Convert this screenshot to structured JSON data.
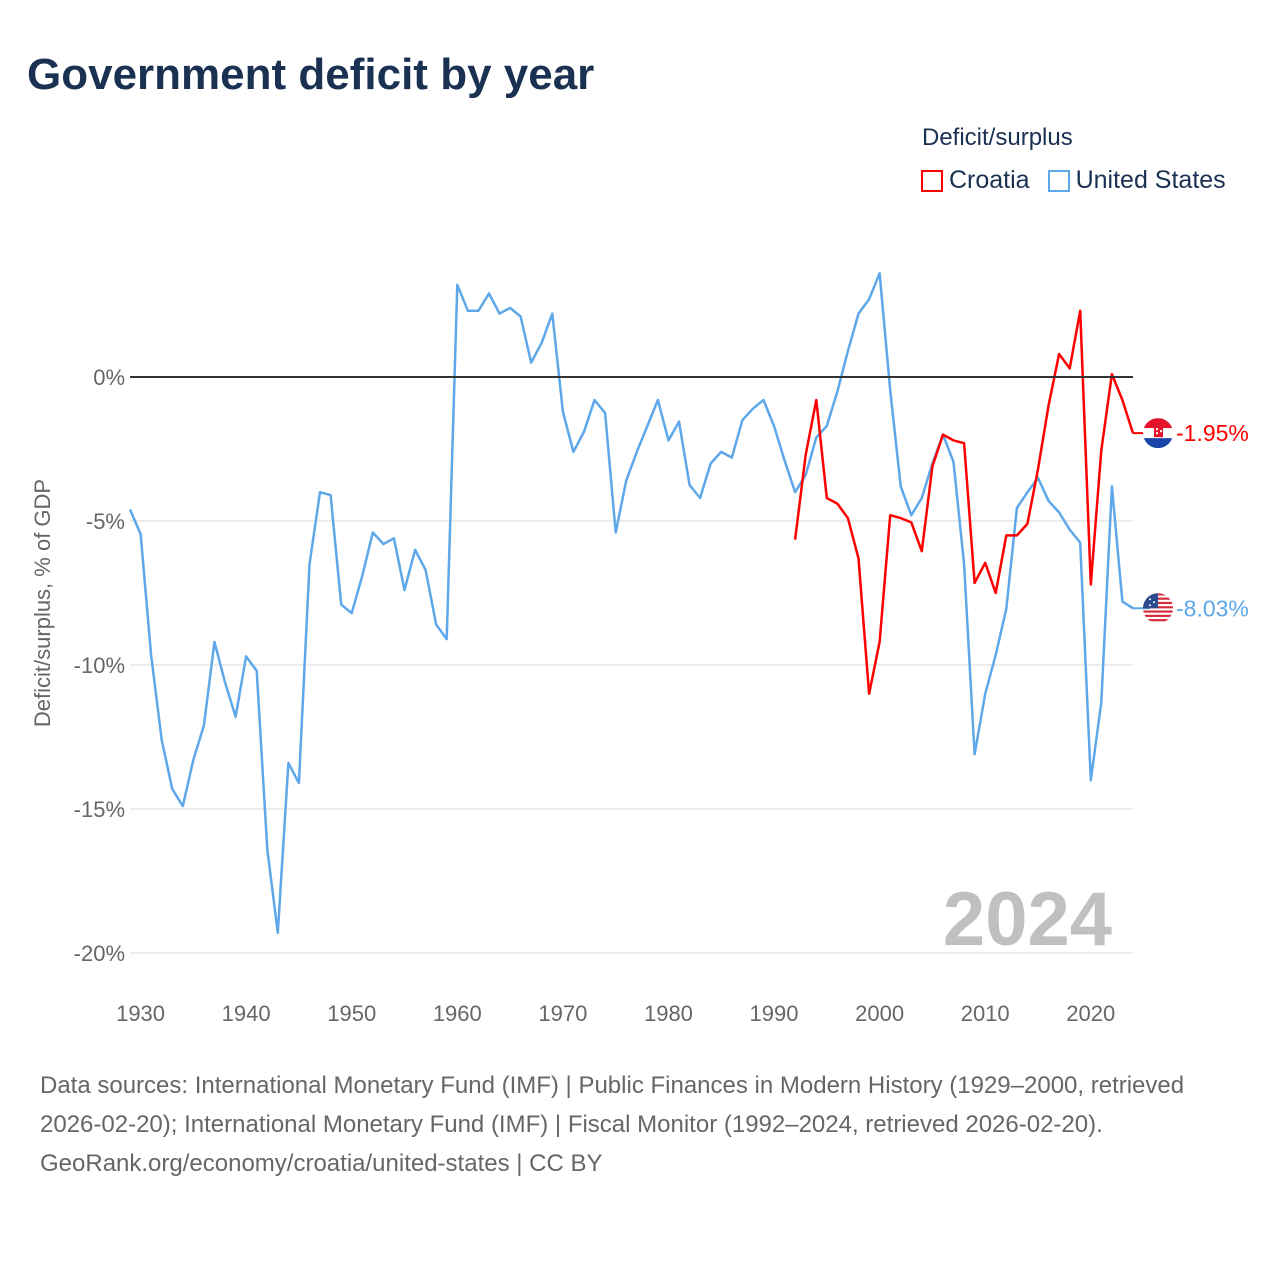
{
  "title": "Government deficit by year",
  "legend": {
    "title": "Deficit/surplus",
    "items": [
      {
        "label": "Croatia",
        "color": "#ff0000"
      },
      {
        "label": "United States",
        "color": "#5ea8ea"
      }
    ]
  },
  "chart_data": {
    "type": "line",
    "title": "Government deficit by year",
    "xlabel": "",
    "ylabel": "Deficit/surplus, % of GDP",
    "xlim": [
      1929,
      2024
    ],
    "ylim": [
      -20,
      3.6
    ],
    "x_ticks": [
      1930,
      1940,
      1950,
      1960,
      1970,
      1980,
      1990,
      2000,
      2010,
      2020
    ],
    "y_ticks": [
      {
        "value": 0,
        "label": "0%"
      },
      {
        "value": -5,
        "label": "-5%"
      },
      {
        "value": -10,
        "label": "-10%"
      },
      {
        "value": -15,
        "label": "-15%"
      },
      {
        "value": -20,
        "label": "-20%"
      }
    ],
    "grid": true,
    "year_watermark": "2024",
    "series": [
      {
        "name": "United States",
        "color": "#5ea8ea",
        "end_label": "-8.03%",
        "flag": "us-flag",
        "start_year": 1929,
        "values": [
          -4.6,
          -5.45,
          -9.65,
          -12.6,
          -14.3,
          -14.9,
          -13.3,
          -12.1,
          -9.2,
          -10.6,
          -11.8,
          -9.7,
          -10.2,
          -16.4,
          -19.3,
          -13.4,
          -14.1,
          -6.5,
          -4.0,
          -4.1,
          -7.9,
          -8.2,
          -6.9,
          -5.4,
          -5.8,
          -5.6,
          -7.4,
          -6.0,
          -6.7,
          -8.6,
          -9.1,
          3.2,
          2.3,
          2.3,
          2.9,
          2.2,
          2.4,
          2.1,
          0.5,
          1.2,
          2.2,
          -1.2,
          -2.6,
          -1.9,
          -0.8,
          -1.25,
          -5.4,
          -3.6,
          -2.6,
          -1.7,
          -0.8,
          -2.2,
          -1.55,
          -3.75,
          -4.2,
          -3.0,
          -2.6,
          -2.8,
          -1.5,
          -1.1,
          -0.8,
          -1.7,
          -2.9,
          -4.0,
          -3.4,
          -2.1,
          -1.7,
          -0.5,
          0.9,
          2.2,
          2.7,
          3.6,
          -0.45,
          -3.8,
          -4.8,
          -4.2,
          -3.0,
          -2.0,
          -2.95,
          -6.5,
          -13.1,
          -11.0,
          -9.65,
          -8.05,
          -4.55,
          -4.0,
          -3.5,
          -4.3,
          -4.7,
          -5.3,
          -5.75,
          -14.0,
          -11.3,
          -3.8,
          -7.8,
          -8.03
        ]
      },
      {
        "name": "Croatia",
        "color": "#ff0000",
        "end_label": "-1.95%",
        "flag": "croatia-flag",
        "start_year": 1992,
        "values": [
          -5.65,
          -2.7,
          -0.8,
          -4.2,
          -4.4,
          -4.9,
          -6.3,
          -11.0,
          -9.2,
          -4.8,
          -4.9,
          -5.05,
          -6.05,
          -3.1,
          -2.0,
          -2.2,
          -2.3,
          -7.15,
          -6.45,
          -7.5,
          -5.5,
          -5.5,
          -5.1,
          -3.2,
          -1.0,
          0.8,
          0.3,
          2.3,
          -7.2,
          -2.55,
          0.1,
          -0.8,
          -1.95
        ]
      }
    ]
  },
  "footer": {
    "sources": "Data sources: International Monetary Fund (IMF) | Public Finances in Modern History (1929–2000, retrieved 2026-02-20); International Monetary Fund (IMF) | Fiscal Monitor (1992–2024, retrieved 2026-02-20).",
    "credit": "GeoRank.org/economy/croatia/united-states | CC BY"
  }
}
